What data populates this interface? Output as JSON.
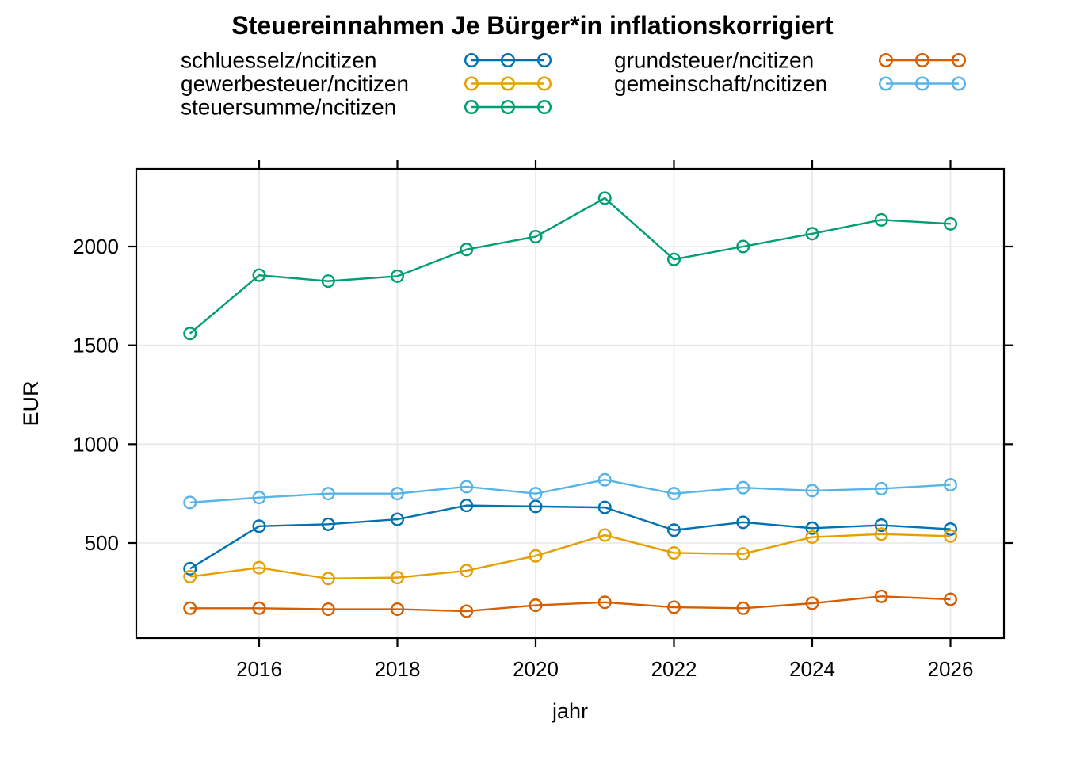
{
  "page": {
    "background_color": "#ffffff",
    "text_color": "#000000",
    "gridline_color": "#e7e7e7",
    "axis_color": "#000000"
  },
  "chart_data": {
    "type": "line",
    "title": "Steuereinnahmen Je Bürger*in inflationskorrigiert",
    "xlabel": "jahr",
    "ylabel": "EUR",
    "x": [
      2015,
      2016,
      2017,
      2018,
      2019,
      2020,
      2021,
      2022,
      2023,
      2024,
      2025,
      2026
    ],
    "x_ticks": [
      2016,
      2018,
      2020,
      2022,
      2024,
      2026
    ],
    "y_ticks": [
      500,
      1000,
      1500,
      2000
    ],
    "xlim": [
      2014.2,
      2026.8
    ],
    "ylim": [
      20,
      2390
    ],
    "grid": true,
    "legend_position": "top",
    "legend_columns": 2,
    "marker": "open-circle",
    "series": [
      {
        "name": "schluesselz/ncitizen",
        "color": "#0072B2",
        "values": [
          370,
          585,
          595,
          620,
          690,
          685,
          680,
          565,
          605,
          575,
          590,
          570
        ]
      },
      {
        "name": "gewerbesteuer/ncitizen",
        "color": "#E69F00",
        "values": [
          330,
          375,
          320,
          325,
          360,
          435,
          540,
          450,
          445,
          530,
          545,
          535
        ]
      },
      {
        "name": "steuersumme/ncitizen",
        "color": "#009E73",
        "values": [
          1560,
          1855,
          1825,
          1850,
          1985,
          2050,
          2245,
          1935,
          2000,
          2065,
          2135,
          2115
        ]
      },
      {
        "name": "grundsteuer/ncitizen",
        "color": "#D55E00",
        "values": [
          170,
          170,
          165,
          165,
          155,
          185,
          200,
          175,
          170,
          195,
          230,
          215
        ]
      },
      {
        "name": "gemeinschaft/ncitizen",
        "color": "#56B4E9",
        "values": [
          705,
          730,
          750,
          750,
          785,
          750,
          820,
          750,
          780,
          765,
          775,
          795
        ]
      }
    ]
  }
}
